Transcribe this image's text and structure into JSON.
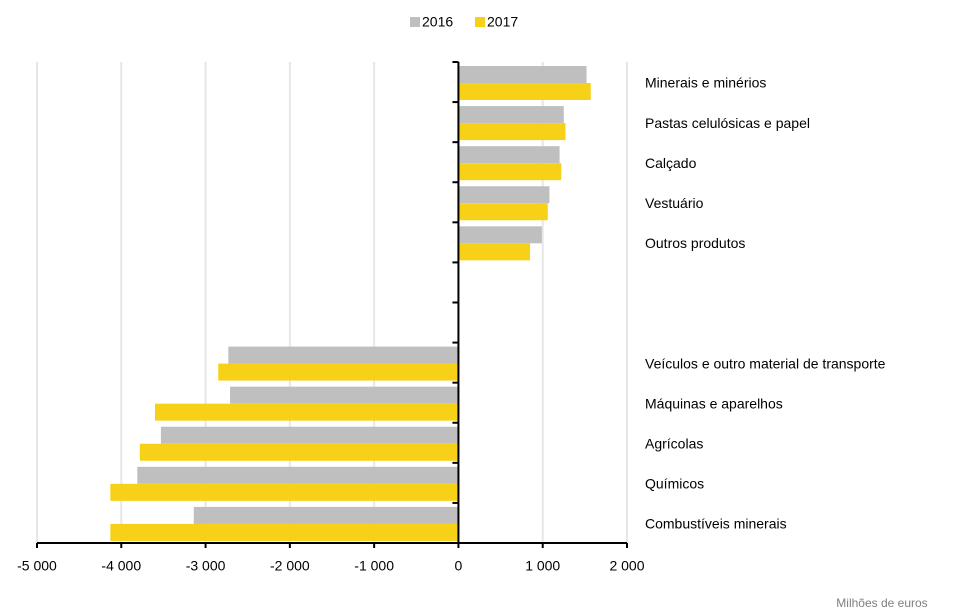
{
  "chart_data": {
    "type": "hbar",
    "categories": [
      "Minerais e minérios",
      "Pastas celulósicas e papel",
      "Calçado",
      "Vestuário",
      "Outros produtos",
      null,
      null,
      "Veículos e outro material de transporte",
      "Máquinas e aparelhos",
      "Agrícolas",
      "Químicos",
      "Combustíveis minerais"
    ],
    "series": [
      {
        "name": "2016",
        "color": "#bfbfbf",
        "values": [
          1520,
          1250,
          1200,
          1080,
          990,
          null,
          null,
          -2730,
          -2710,
          -3530,
          -3810,
          -3140
        ]
      },
      {
        "name": "2017",
        "color": "#f7d117",
        "values": [
          1570,
          1270,
          1220,
          1060,
          850,
          null,
          null,
          -2850,
          -3600,
          -3780,
          -4130,
          -4130
        ]
      }
    ],
    "xlim": [
      -5000,
      2000
    ],
    "xticks": [
      {
        "value": -5000,
        "label": "-5 000"
      },
      {
        "value": -4000,
        "label": "-4 000"
      },
      {
        "value": -3000,
        "label": "-3 000"
      },
      {
        "value": -2000,
        "label": "-2 000"
      },
      {
        "value": -1000,
        "label": "-1 000"
      },
      0,
      {
        "value": 1000,
        "label": "1 000"
      },
      {
        "value": 2000,
        "label": "2 000"
      }
    ],
    "xlabel": "Milhões de euros",
    "grid": true,
    "legend": "top"
  }
}
